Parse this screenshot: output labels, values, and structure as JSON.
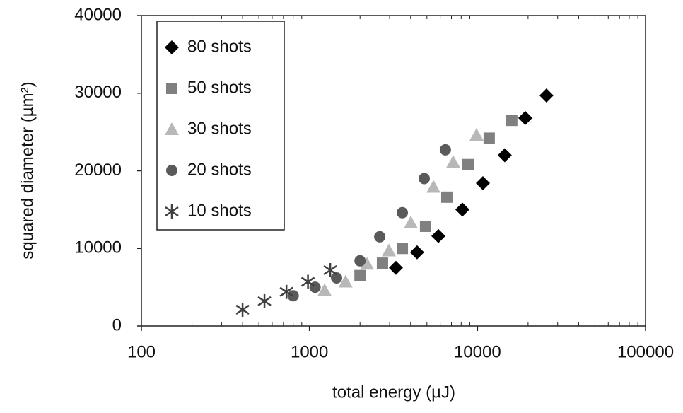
{
  "chart_data": {
    "type": "scatter",
    "x_label": "total energy  (µJ)",
    "y_label": "squared diameter (µm²)",
    "x_scale": "log",
    "x_minor_ticks": true,
    "xlim": [
      100,
      100000
    ],
    "xticks": [
      100,
      1000,
      10000,
      100000
    ],
    "ylim": [
      0,
      40000
    ],
    "yticks": [
      0,
      10000,
      20000,
      30000,
      40000
    ],
    "legend": "upper-left",
    "series": [
      {
        "name": "80 shots",
        "color": "#000000",
        "marker": "diamond",
        "x": [
          3270,
          4370,
          5850,
          8130,
          10770,
          14530,
          19250,
          25740
        ],
        "values": [
          7500,
          9500,
          11600,
          15000,
          18400,
          22000,
          26800,
          29700
        ]
      },
      {
        "name": "50 shots",
        "color": "#808080",
        "marker": "square",
        "x": [
          2000,
          2720,
          3570,
          4910,
          6570,
          8790,
          11740,
          16000
        ],
        "values": [
          6500,
          8100,
          10000,
          12850,
          16600,
          20800,
          24200,
          26500
        ]
      },
      {
        "name": "30 shots",
        "color": "#b8b8b8",
        "marker": "triangle",
        "x": [
          1230,
          1640,
          2200,
          2970,
          4010,
          5470,
          7170,
          9870
        ],
        "values": [
          4600,
          5700,
          8000,
          9700,
          13300,
          17900,
          21100,
          24600
        ]
      },
      {
        "name": "20 shots",
        "color": "#5a5a5a",
        "marker": "circle",
        "x": [
          800,
          1080,
          1450,
          2000,
          2620,
          3570,
          4820,
          6440
        ],
        "values": [
          3900,
          5000,
          6200,
          8400,
          11500,
          14600,
          19000,
          22700
        ]
      },
      {
        "name": "10 shots",
        "color": "#404040",
        "marker": "star",
        "x": [
          400,
          540,
          730,
          980,
          1330
        ],
        "values": [
          2100,
          3200,
          4400,
          5700,
          7200
        ]
      }
    ]
  }
}
